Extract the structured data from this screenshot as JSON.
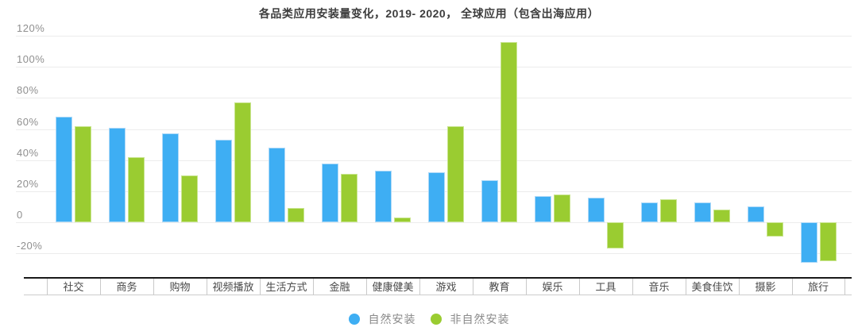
{
  "chart_data": {
    "type": "bar",
    "title": "各品类应用安装量变化，2019- 2020， 全球应用（包含出海应用）",
    "categories": [
      "社交",
      "商务",
      "购物",
      "视频播放",
      "生活方式",
      "金融",
      "健康健美",
      "游戏",
      "教育",
      "娱乐",
      "工具",
      "音乐",
      "美食佳饮",
      "摄影",
      "旅行"
    ],
    "series": [
      {
        "name": "自然安装",
        "color": "#3EAEF3",
        "values": [
          68,
          61,
          57,
          53,
          48,
          38,
          33,
          32,
          27,
          17,
          16,
          13,
          13,
          10,
          -26
        ]
      },
      {
        "name": "非自然安装",
        "color": "#9ACC31",
        "values": [
          62,
          42,
          30,
          77,
          9,
          31,
          3,
          62,
          116,
          18,
          -17,
          15,
          8,
          -9,
          -25
        ]
      }
    ],
    "y_ticks": [
      "120%",
      "100%",
      "80%",
      "60%",
      "40%",
      "20%",
      "0",
      "-20%"
    ],
    "y_tick_values": [
      120,
      100,
      80,
      60,
      40,
      20,
      0,
      -20
    ],
    "ylim": [
      -30,
      125
    ],
    "xlabel": "",
    "ylabel": "",
    "grid": true,
    "legend_position": "bottom",
    "colors": {
      "gridline": "#ececec",
      "axis_line": "#1a1a1a",
      "tick_text": "#8f8f8f",
      "category_text": "#4a4a4a",
      "title_text": "#3d3d3d",
      "legend_text": "#8a8a8a"
    }
  }
}
